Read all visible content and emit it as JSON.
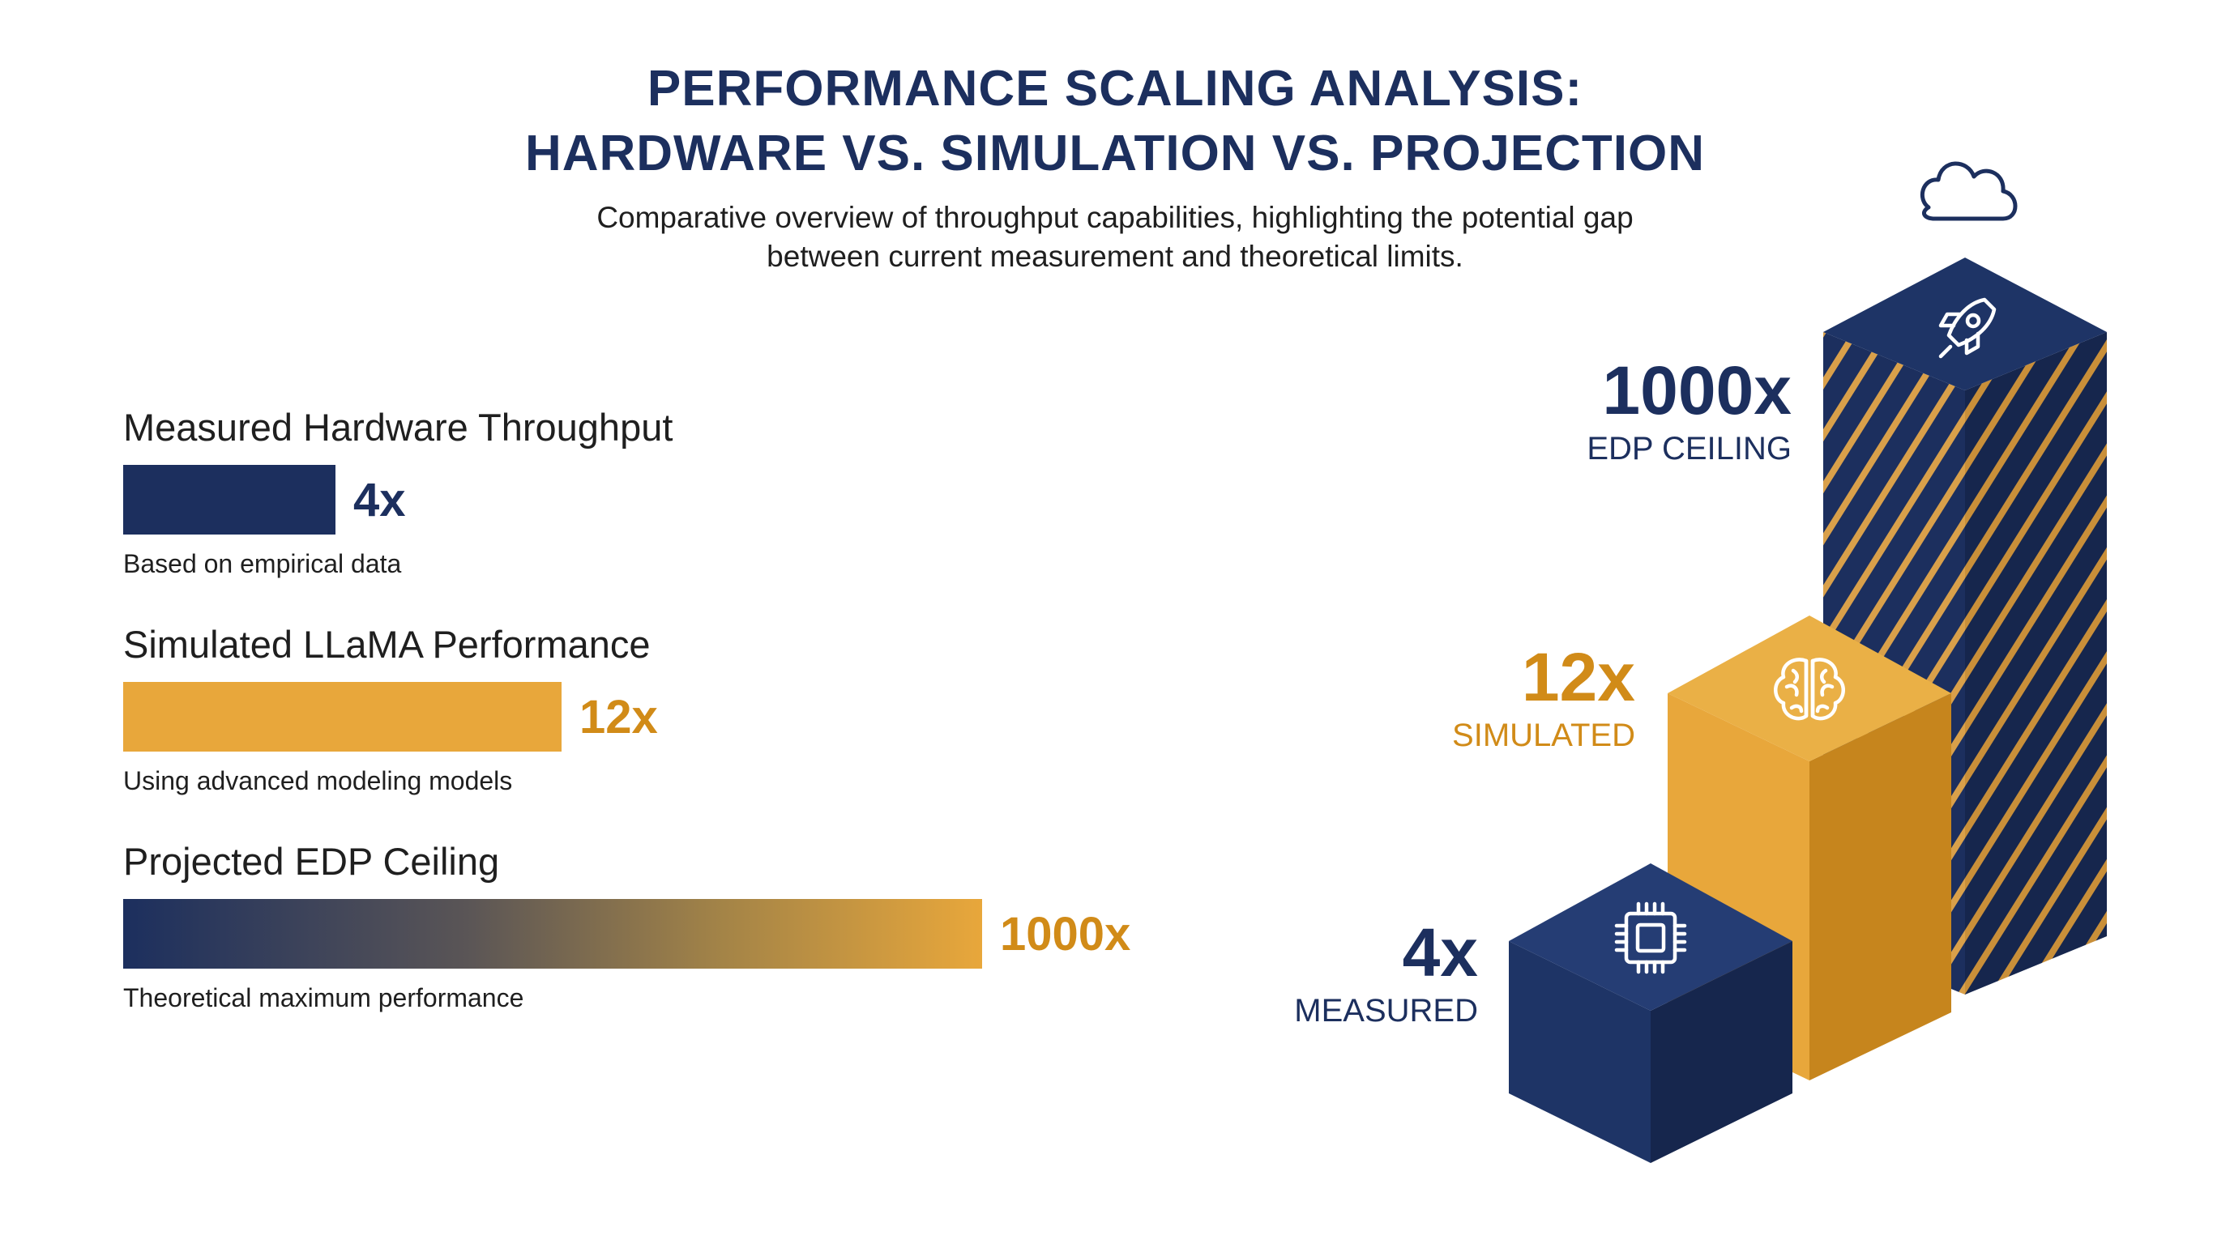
{
  "title_line1": "PERFORMANCE SCALING ANALYSIS:",
  "title_line2": "HARDWARE VS. SIMULATION VS. PROJECTION",
  "subtitle_line1": "Comparative overview of throughput capabilities, highlighting the potential gap",
  "subtitle_line2": "between current measurement and theoretical limits.",
  "colors": {
    "navy": "#1c2f5e",
    "gold": "#e8a73b",
    "gold_text": "#d18b18",
    "text": "#1f1f1f"
  },
  "chart_data": [
    {
      "type": "bar",
      "orientation": "horizontal",
      "categories": [
        "Measured Hardware Throughput",
        "Simulated LLaMA Performance",
        "Projected EDP Ceiling"
      ],
      "values": [
        4,
        12,
        1000
      ],
      "value_labels": [
        "4x",
        "12x",
        "1000x"
      ],
      "captions": [
        "Based on empirical data",
        "Using advanced modeling models",
        "Theoretical maximum performance"
      ],
      "bar_fill": [
        "navy solid",
        "gold solid",
        "navy-to-gold gradient"
      ]
    },
    {
      "type": "bar",
      "style": "isometric 3d columns",
      "categories": [
        "MEASURED",
        "SIMULATED",
        "EDP CEILING"
      ],
      "values": [
        4,
        12,
        1000
      ],
      "value_labels": [
        "4x",
        "12x",
        "1000x"
      ],
      "icons": [
        "chip-icon",
        "brain-icon",
        "rocket-icon"
      ],
      "decoration_icon": "cloud-icon",
      "fills": [
        "navy",
        "gold",
        "navy with gold diagonal stripes"
      ]
    }
  ]
}
